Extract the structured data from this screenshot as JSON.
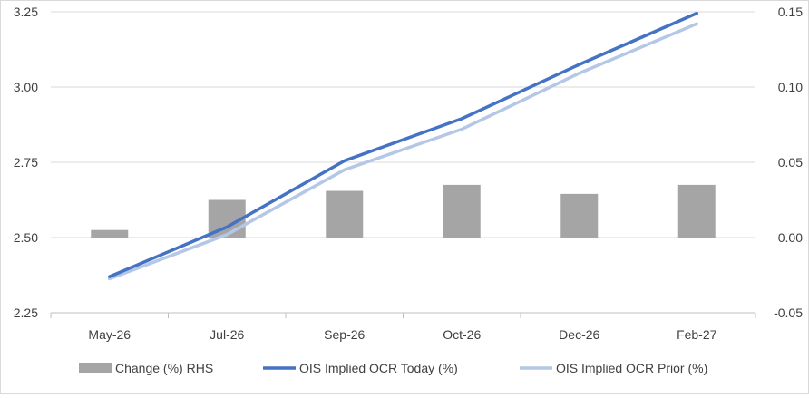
{
  "chart_data": {
    "type": "bar",
    "categories": [
      "May-26",
      "Jul-26",
      "Sep-26",
      "Oct-26",
      "Dec-26",
      "Feb-27"
    ],
    "series": [
      {
        "name": "Change (%) RHS",
        "type": "bar",
        "axis": "right",
        "color": "#a5a5a5",
        "values": [
          0.005,
          0.025,
          0.031,
          0.035,
          0.029,
          0.035
        ]
      },
      {
        "name": "OIS Implied OCR Today (%)",
        "type": "line",
        "axis": "left",
        "color": "#4472c4",
        "values": [
          2.37,
          2.535,
          2.755,
          2.895,
          3.075,
          3.245
        ]
      },
      {
        "name": "OIS Implied OCR Prior (%)",
        "type": "line",
        "axis": "left",
        "color": "#b4c7e7",
        "values": [
          2.363,
          2.51,
          2.725,
          2.86,
          3.046,
          3.21
        ]
      }
    ],
    "y_left": {
      "ylim": [
        2.25,
        3.25
      ],
      "ticks": [
        "2.25",
        "2.50",
        "2.75",
        "3.00",
        "3.25"
      ],
      "tick_values": [
        2.25,
        2.5,
        2.75,
        3.0,
        3.25
      ]
    },
    "y_right": {
      "ylim": [
        -0.05,
        0.15
      ],
      "ticks": [
        "-0.05",
        "0.00",
        "0.05",
        "0.10",
        "0.15"
      ],
      "tick_values": [
        -0.05,
        0.0,
        0.05,
        0.1,
        0.15
      ]
    },
    "grid": true,
    "legend_position": "bottom"
  }
}
